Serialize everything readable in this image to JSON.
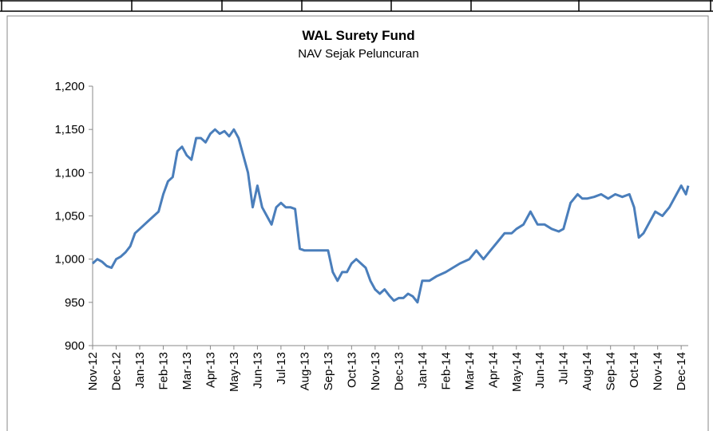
{
  "chart_data": {
    "type": "line",
    "title": "WAL Surety Fund",
    "subtitle": "NAV Sejak Peluncuran",
    "xlim": [
      0,
      25.3
    ],
    "xticks": [
      {
        "value": 0,
        "label": "Nov-12"
      },
      {
        "value": 1,
        "label": "Dec-12"
      },
      {
        "value": 2,
        "label": "Jan-13"
      },
      {
        "value": 3,
        "label": "Feb-13"
      },
      {
        "value": 4,
        "label": "Mar-13"
      },
      {
        "value": 5,
        "label": "Apr-13"
      },
      {
        "value": 6,
        "label": "May-13"
      },
      {
        "value": 7,
        "label": "Jun-13"
      },
      {
        "value": 8,
        "label": "Jul-13"
      },
      {
        "value": 9,
        "label": "Aug-13"
      },
      {
        "value": 10,
        "label": "Sep-13"
      },
      {
        "value": 11,
        "label": "Oct-13"
      },
      {
        "value": 12,
        "label": "Nov-13"
      },
      {
        "value": 13,
        "label": "Dec-13"
      },
      {
        "value": 14,
        "label": "Jan-14"
      },
      {
        "value": 15,
        "label": "Feb-14"
      },
      {
        "value": 16,
        "label": "Mar-14"
      },
      {
        "value": 17,
        "label": "Apr-14"
      },
      {
        "value": 18,
        "label": "May-14"
      },
      {
        "value": 19,
        "label": "Jun-14"
      },
      {
        "value": 20,
        "label": "Jul-14"
      },
      {
        "value": 21,
        "label": "Aug-14"
      },
      {
        "value": 22,
        "label": "Sep-14"
      },
      {
        "value": 23,
        "label": "Oct-14"
      },
      {
        "value": 24,
        "label": "Nov-14"
      },
      {
        "value": 25,
        "label": "Dec-14"
      }
    ],
    "ylim": [
      900,
      1200
    ],
    "yticks": [
      900,
      950,
      {
        "value": 1000,
        "label": "1,000"
      },
      {
        "value": 1050,
        "label": "1,050"
      },
      {
        "value": 1100,
        "label": "1,100"
      },
      {
        "value": 1150,
        "label": "1,150"
      },
      {
        "value": 1200,
        "label": "1,200"
      }
    ],
    "x": [
      0,
      0.2,
      0.4,
      0.6,
      0.8,
      1.0,
      1.2,
      1.4,
      1.6,
      1.8,
      2.0,
      2.2,
      2.4,
      2.6,
      2.8,
      3.0,
      3.2,
      3.4,
      3.6,
      3.8,
      4.0,
      4.2,
      4.4,
      4.6,
      4.8,
      5.0,
      5.2,
      5.4,
      5.6,
      5.8,
      6.0,
      6.2,
      6.4,
      6.6,
      6.8,
      7.0,
      7.2,
      7.4,
      7.6,
      7.8,
      8.0,
      8.2,
      8.4,
      8.6,
      8.8,
      9.0,
      9.5,
      10.0,
      10.2,
      10.4,
      10.6,
      10.8,
      11.0,
      11.2,
      11.4,
      11.6,
      11.8,
      12.0,
      12.2,
      12.4,
      12.6,
      12.8,
      13.0,
      13.2,
      13.4,
      13.6,
      13.8,
      14.0,
      14.3,
      14.6,
      15.0,
      15.3,
      15.6,
      16.0,
      16.3,
      16.6,
      16.9,
      17.2,
      17.5,
      17.8,
      18.0,
      18.3,
      18.6,
      18.9,
      19.2,
      19.5,
      19.8,
      20.0,
      20.3,
      20.6,
      20.8,
      21.0,
      21.3,
      21.6,
      21.9,
      22.2,
      22.5,
      22.8,
      23.0,
      23.2,
      23.4,
      23.6,
      23.9,
      24.2,
      24.5,
      24.8,
      25.0,
      25.1,
      25.2,
      25.3
    ],
    "series": [
      {
        "color": "#4a7ebb",
        "values": [
          995,
          1000,
          997,
          992,
          990,
          1000,
          1003,
          1008,
          1015,
          1030,
          1035,
          1040,
          1045,
          1050,
          1055,
          1075,
          1090,
          1095,
          1125,
          1130,
          1120,
          1115,
          1140,
          1140,
          1135,
          1145,
          1150,
          1145,
          1148,
          1142,
          1150,
          1140,
          1120,
          1100,
          1060,
          1085,
          1060,
          1050,
          1040,
          1060,
          1065,
          1060,
          1060,
          1058,
          1012,
          1010,
          1010,
          1010,
          985,
          975,
          985,
          985,
          995,
          1000,
          995,
          990,
          975,
          965,
          960,
          965,
          958,
          952,
          955,
          955,
          960,
          957,
          950,
          975,
          975,
          980,
          985,
          990,
          995,
          1000,
          1010,
          1000,
          1010,
          1020,
          1030,
          1030,
          1035,
          1040,
          1055,
          1040,
          1040,
          1035,
          1032,
          1035,
          1065,
          1075,
          1070,
          1070,
          1072,
          1075,
          1070,
          1075,
          1072,
          1075,
          1060,
          1025,
          1030,
          1040,
          1055,
          1050,
          1060,
          1075,
          1085,
          1080,
          1075,
          1085
        ]
      }
    ]
  }
}
